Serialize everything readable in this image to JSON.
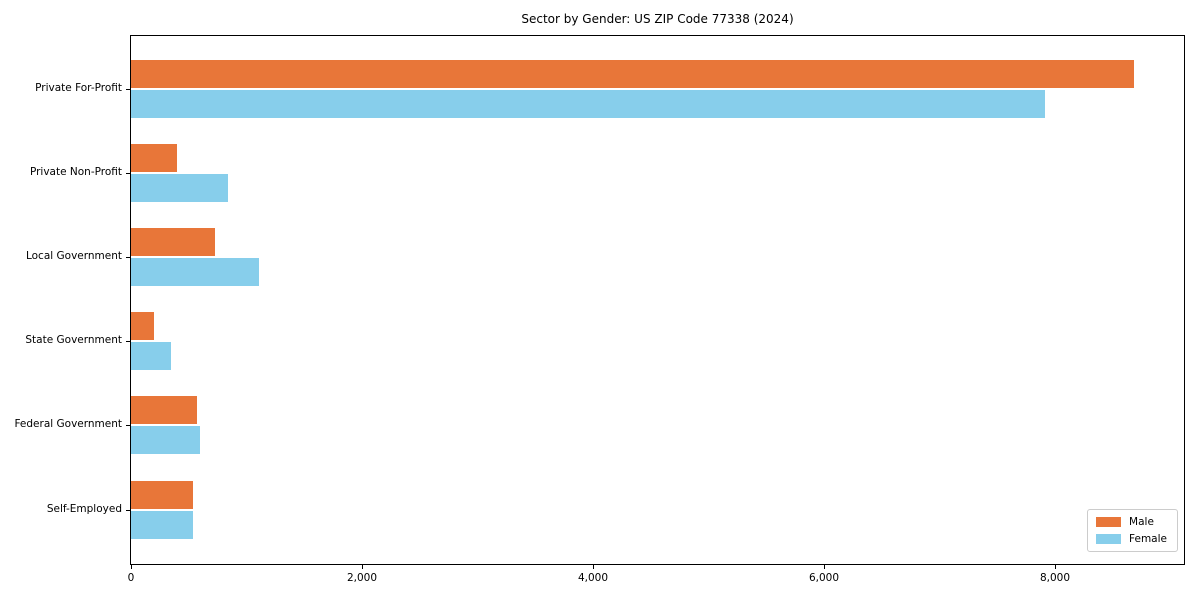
{
  "title": "Sector by Gender: US ZIP Code 77338 (2024)",
  "chart_data": {
    "type": "bar",
    "orientation": "horizontal",
    "title": "Sector by Gender: US ZIP Code 77338 (2024)",
    "categories": [
      "Private For-Profit",
      "Private Non-Profit",
      "Local Government",
      "State Government",
      "Federal Government",
      "Self-Employed"
    ],
    "series": [
      {
        "name": "Male",
        "color": "#e87639",
        "values": [
          8680,
          400,
          730,
          200,
          570,
          540
        ]
      },
      {
        "name": "Female",
        "color": "#87ceeb",
        "values": [
          7910,
          840,
          1110,
          350,
          600,
          540
        ]
      }
    ],
    "xlabel": "",
    "ylabel": "",
    "xlim": [
      0,
      9115
    ],
    "xticks": [
      0,
      2000,
      4000,
      6000,
      8000
    ],
    "xtick_labels": [
      "0",
      "2,000",
      "4,000",
      "6,000",
      "8,000"
    ],
    "grid": false,
    "legend_position": "lower right",
    "plot_border_color": "#000000",
    "background_color": "#ffffff"
  }
}
